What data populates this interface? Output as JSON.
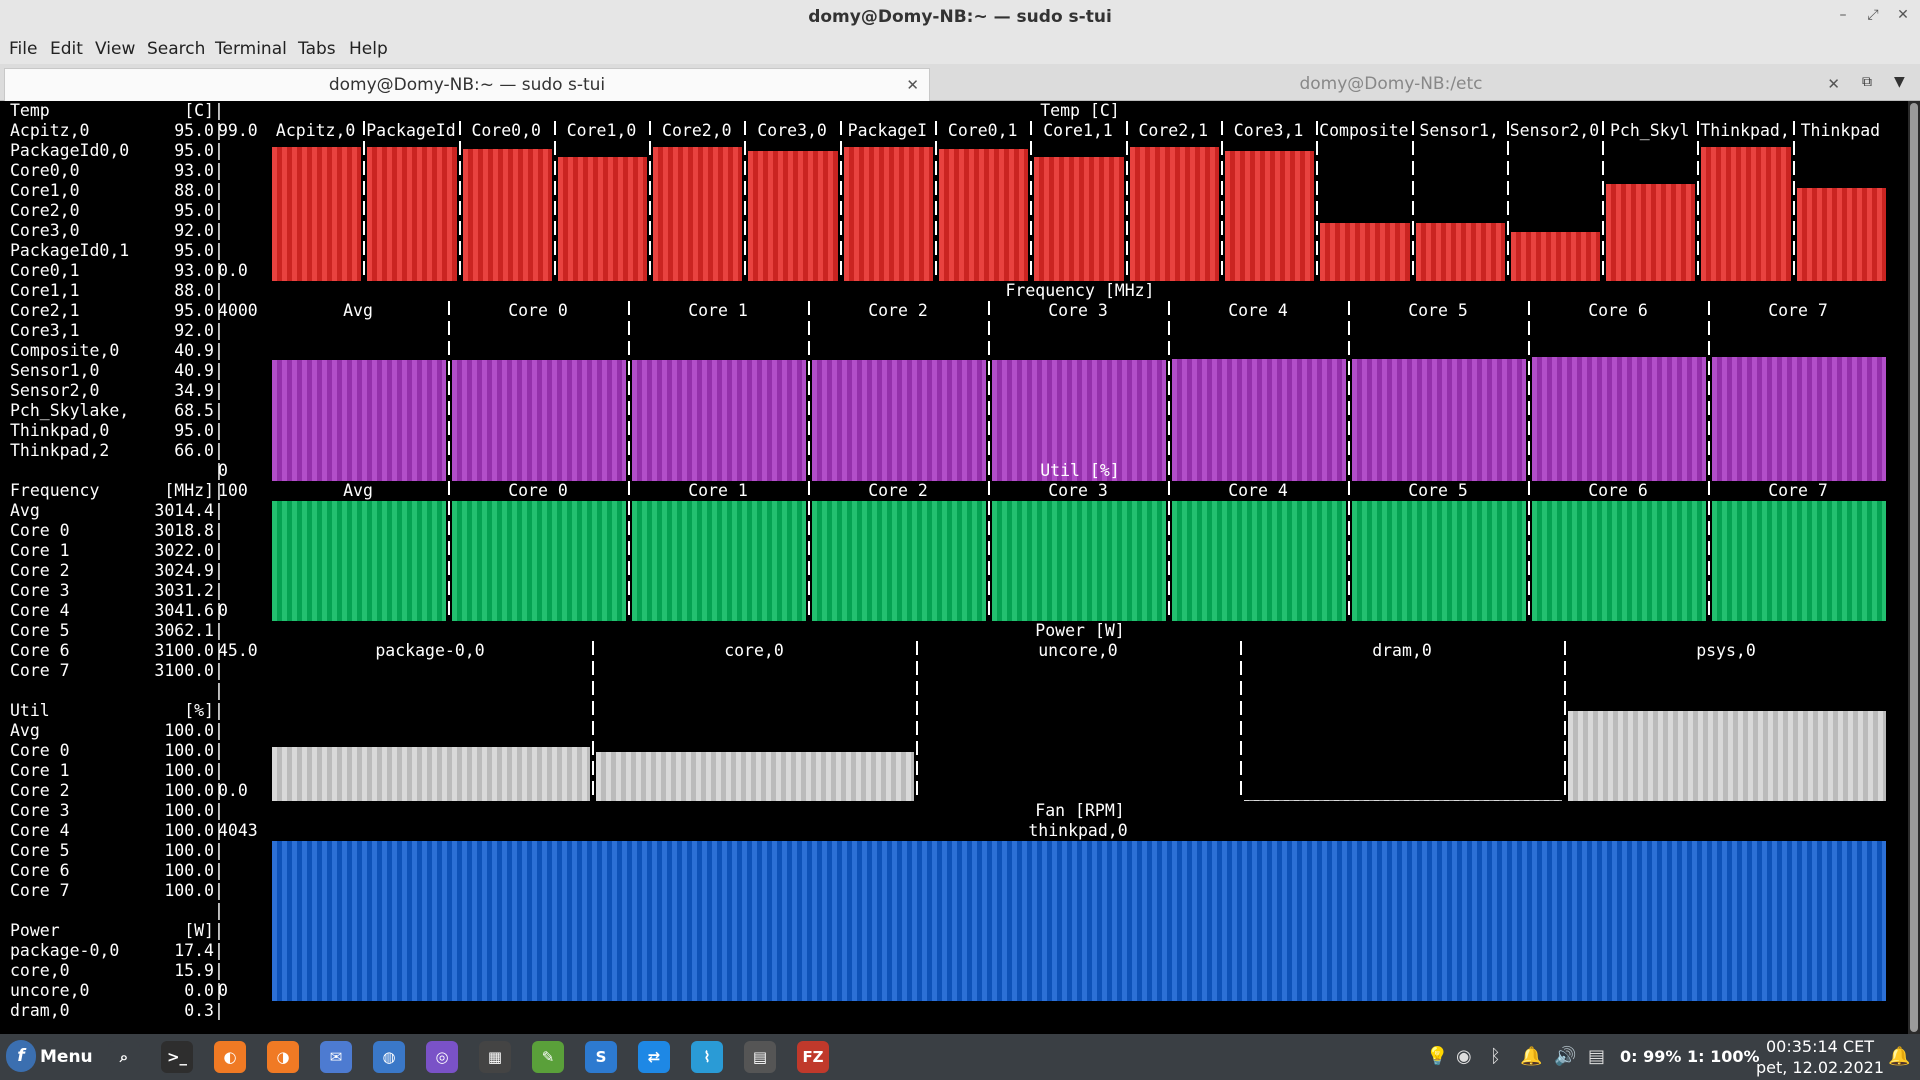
{
  "window": {
    "title": "domy@Domy-NB:~ — sudo s-tui",
    "controls": [
      "minimize-icon",
      "restore-icon",
      "close-icon"
    ]
  },
  "menu": [
    "File",
    "Edit",
    "View",
    "Search",
    "Terminal",
    "Tabs",
    "Help"
  ],
  "tabs": [
    {
      "label": "domy@Domy-NB:~ — sudo s-tui",
      "active": true
    },
    {
      "label": "domy@Domy-NB:/etc",
      "active": false
    }
  ],
  "sidebar": [
    {
      "label": "Temp",
      "val": "[C]"
    },
    {
      "label": "Acpitz,0",
      "val": "95.0"
    },
    {
      "label": "PackageId0,0",
      "val": "95.0"
    },
    {
      "label": "Core0,0",
      "val": "93.0"
    },
    {
      "label": "Core1,0",
      "val": "88.0"
    },
    {
      "label": "Core2,0",
      "val": "95.0"
    },
    {
      "label": "Core3,0",
      "val": "92.0"
    },
    {
      "label": "PackageId0,1",
      "val": "95.0"
    },
    {
      "label": "Core0,1",
      "val": "93.0"
    },
    {
      "label": "Core1,1",
      "val": "88.0"
    },
    {
      "label": "Core2,1",
      "val": "95.0"
    },
    {
      "label": "Core3,1",
      "val": "92.0"
    },
    {
      "label": "Composite,0",
      "val": "40.9"
    },
    {
      "label": "Sensor1,0",
      "val": "40.9"
    },
    {
      "label": "Sensor2,0",
      "val": "34.9"
    },
    {
      "label": "Pch_Skylake,",
      "val": "68.5"
    },
    {
      "label": "Thinkpad,0",
      "val": "95.0"
    },
    {
      "label": "Thinkpad,2",
      "val": "66.0"
    },
    {
      "label": "",
      "val": ""
    },
    {
      "label": "Frequency",
      "val": "[MHz]"
    },
    {
      "label": "Avg",
      "val": "3014.4"
    },
    {
      "label": "Core 0",
      "val": "3018.8"
    },
    {
      "label": "Core 1",
      "val": "3022.0"
    },
    {
      "label": "Core 2",
      "val": "3024.9"
    },
    {
      "label": "Core 3",
      "val": "3031.2"
    },
    {
      "label": "Core 4",
      "val": "3041.6"
    },
    {
      "label": "Core 5",
      "val": "3062.1"
    },
    {
      "label": "Core 6",
      "val": "3100.0"
    },
    {
      "label": "Core 7",
      "val": "3100.0"
    },
    {
      "label": "",
      "val": ""
    },
    {
      "label": "Util",
      "val": "[%]"
    },
    {
      "label": "Avg",
      "val": "100.0"
    },
    {
      "label": "Core 0",
      "val": "100.0"
    },
    {
      "label": "Core 1",
      "val": "100.0"
    },
    {
      "label": "Core 2",
      "val": "100.0"
    },
    {
      "label": "Core 3",
      "val": "100.0"
    },
    {
      "label": "Core 4",
      "val": "100.0"
    },
    {
      "label": "Core 5",
      "val": "100.0"
    },
    {
      "label": "Core 6",
      "val": "100.0"
    },
    {
      "label": "Core 7",
      "val": "100.0"
    },
    {
      "label": "",
      "val": ""
    },
    {
      "label": "Power",
      "val": "[W]"
    },
    {
      "label": "package-0,0",
      "val": "17.4"
    },
    {
      "label": "core,0",
      "val": "15.9"
    },
    {
      "label": "uncore,0",
      "val": "0.0"
    },
    {
      "label": "dram,0",
      "val": "0.3"
    }
  ],
  "graphs": {
    "temp": {
      "title": "Temp [C]",
      "ymax": "99.0",
      "ymin": "0.0",
      "sensors": [
        "Acpitz,0",
        "PackageId",
        "Core0,0",
        "Core1,0",
        "Core2,0",
        "Core3,0",
        "PackageI",
        "Core0,1",
        "Core1,1",
        "Core2,1",
        "Core3,1",
        "Composite",
        "Sensor1,",
        "Sensor2,0",
        "Pch_Skyl",
        "Thinkpad,",
        "Thinkpad"
      ],
      "values": [
        95.0,
        95.0,
        93.0,
        88.0,
        95.0,
        92.0,
        95.0,
        93.0,
        88.0,
        95.0,
        92.0,
        40.9,
        40.9,
        34.9,
        68.5,
        95.0,
        66.0
      ],
      "color": "#e8423f"
    },
    "freq": {
      "title": "Frequency [MHz]",
      "ymax": "4000",
      "ymin": "0",
      "cores": [
        "Avg",
        "Core 0",
        "Core 1",
        "Core 2",
        "Core 3",
        "Core 4",
        "Core 5",
        "Core 6",
        "Core 7"
      ],
      "values": [
        3014.4,
        3018.8,
        3022.0,
        3024.9,
        3031.2,
        3041.6,
        3062.1,
        3100.0,
        3100.0
      ],
      "color": "#b24ec9"
    },
    "util": {
      "title": "Util [%]",
      "ymax": "100",
      "ymin": "0",
      "cores": [
        "Avg",
        "Core 0",
        "Core 1",
        "Core 2",
        "Core 3",
        "Core 4",
        "Core 5",
        "Core 6",
        "Core 7"
      ],
      "values": [
        100,
        100,
        100,
        100,
        100,
        100,
        100,
        100,
        100
      ],
      "color": "#23c070"
    },
    "power": {
      "title": "Power [W]",
      "ymax": "45.0",
      "ymin": "0.0",
      "series": [
        "package-0,0",
        "core,0",
        "uncore,0",
        "dram,0",
        "psys,0"
      ],
      "values": [
        17.4,
        15.9,
        0.0,
        0.3,
        29.0
      ],
      "color": "#d9d9d9"
    },
    "fan": {
      "title": "Fan [RPM]",
      "ymax": "4043",
      "ymin": "0",
      "series": [
        "thinkpad,0"
      ],
      "values": [
        4043
      ],
      "color": "#2c70d6"
    }
  },
  "taskbar": {
    "menu_label": "Menu",
    "apps": [
      "search-icon",
      "terminal-icon",
      "firefox-icon",
      "firefox-icon",
      "mail-icon",
      "signal-icon",
      "viber-icon",
      "calculator-icon",
      "dbeaver-icon",
      "skype-icon",
      "teamviewer-icon",
      "system-monitor-icon",
      "file-manager-icon",
      "filezilla-icon"
    ],
    "tray_icons": [
      "redshift-icon",
      "viber-tray-icon",
      "bluetooth-icon",
      "notification-icon",
      "volume-icon",
      "battery-icon"
    ],
    "battery": "0: 99%  1: 100%",
    "time": "00:35:14 CET",
    "date": "pet, 12.02.2021"
  }
}
